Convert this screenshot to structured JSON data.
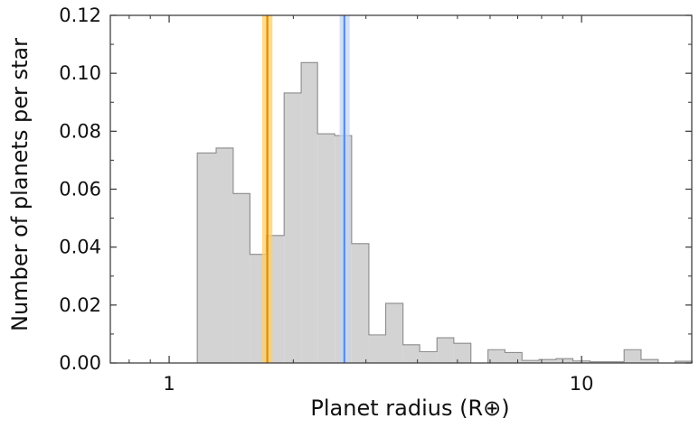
{
  "chart_data": {
    "type": "bar",
    "xlabel": "Planet radius (R⊕)",
    "ylabel": "Number of planets per star",
    "xscale": "log",
    "xlim": [
      0.72,
      18.5
    ],
    "ylim": [
      0,
      0.12
    ],
    "grid": false,
    "yticks": [
      "0.00",
      "0.02",
      "0.04",
      "0.06",
      "0.08",
      "0.10",
      "0.12"
    ],
    "xticks": [
      {
        "value": 1,
        "label": "1"
      },
      {
        "value": 10,
        "label": "10"
      }
    ],
    "bin_edges": [
      1.17,
      1.3,
      1.43,
      1.57,
      1.72,
      1.9,
      2.09,
      2.29,
      2.52,
      2.77,
      3.05,
      3.35,
      3.69,
      4.05,
      4.46,
      4.9,
      5.39,
      5.93,
      6.52,
      7.17,
      7.88,
      8.67,
      9.53,
      10.48,
      11.53,
      12.68,
      13.94,
      15.34,
      16.86,
      18.55
    ],
    "values": [
      0.0725,
      0.0742,
      0.0585,
      0.0375,
      0.044,
      0.0932,
      0.1037,
      0.0791,
      0.0785,
      0.0412,
      0.0097,
      0.0206,
      0.0063,
      0.0039,
      0.0087,
      0.0068,
      0.0,
      0.0046,
      0.0036,
      0.0009,
      0.0012,
      0.0015,
      0.0007,
      0.0004,
      0.0004,
      0.0046,
      0.0012,
      0.0,
      0.0006
    ],
    "bar_color": "#d3d3d3",
    "bar_edge_color": "#8c8c8c",
    "vlines": [
      {
        "value": 1.73,
        "band": [
          1.68,
          1.78
        ],
        "color": "#e38c00",
        "band_color": "#ffcf66"
      },
      {
        "value": 2.66,
        "band": [
          2.59,
          2.74
        ],
        "color": "#5b8de0",
        "band_color": "#c3d6f7"
      }
    ]
  }
}
